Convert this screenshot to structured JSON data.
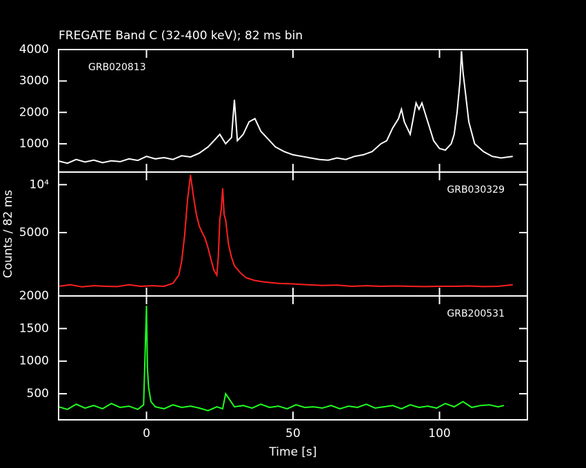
{
  "chart_data": [
    {
      "type": "line",
      "title": "FREGATE Band C (32-400 keV); 82 ms bin",
      "annotation": "GRB020813",
      "xlim": [
        -30,
        130
      ],
      "ylim": [
        100,
        4000
      ],
      "yticks": [
        1000,
        2000,
        3000,
        4000
      ],
      "x": [
        -30,
        -27,
        -24,
        -21,
        -18,
        -15,
        -12,
        -9,
        -6,
        -3,
        0,
        3,
        6,
        9,
        12,
        15,
        18,
        21,
        23,
        25,
        27,
        29,
        30,
        31,
        33,
        35,
        37,
        39,
        41,
        44,
        47,
        50,
        53,
        56,
        59,
        62,
        65,
        68,
        71,
        74,
        77,
        80,
        82,
        84,
        86,
        87,
        88,
        90,
        91,
        92,
        93,
        94,
        96,
        98,
        100,
        102,
        104,
        105,
        106,
        107,
        107.5,
        108,
        109,
        110,
        112,
        115,
        118,
        121,
        125
      ],
      "series": [
        {
          "name": "GRB020813",
          "color": "#ffffff",
          "values": [
            450,
            380,
            500,
            420,
            480,
            400,
            460,
            430,
            520,
            470,
            600,
            520,
            560,
            500,
            620,
            580,
            700,
            900,
            1100,
            1300,
            1000,
            1200,
            2400,
            1100,
            1300,
            1700,
            1800,
            1400,
            1200,
            900,
            750,
            650,
            600,
            550,
            500,
            480,
            550,
            500,
            600,
            650,
            750,
            1000,
            1100,
            1500,
            1800,
            2100,
            1700,
            1300,
            1800,
            2300,
            2100,
            2300,
            1700,
            1100,
            850,
            800,
            1000,
            1300,
            2000,
            3000,
            3950,
            3300,
            2500,
            1700,
            1000,
            750,
            600,
            550,
            600
          ]
        }
      ]
    },
    {
      "type": "line",
      "annotation": "GRB030329",
      "ylabel": "Counts / 82 ms",
      "yscale": "log",
      "xlim": [
        -30,
        130
      ],
      "ylim": [
        2000,
        12000
      ],
      "yticks": [
        {
          "value": 10000,
          "label": "10⁴"
        },
        5000,
        2000
      ],
      "x": [
        -30,
        -26,
        -22,
        -18,
        -14,
        -10,
        -6,
        -2,
        2,
        6,
        9,
        11,
        12,
        13,
        14,
        15,
        16,
        17,
        18,
        19,
        20,
        21,
        22,
        23,
        24,
        24.5,
        25,
        25.5,
        26,
        26.5,
        27,
        28,
        29,
        30,
        32,
        34,
        37,
        40,
        45,
        50,
        55,
        60,
        65,
        70,
        75,
        80,
        85,
        90,
        95,
        100,
        105,
        110,
        115,
        120,
        125
      ],
      "series": [
        {
          "name": "GRB030329",
          "color": "#ff2020",
          "values": [
            2300,
            2350,
            2280,
            2320,
            2300,
            2290,
            2350,
            2300,
            2320,
            2300,
            2400,
            2700,
            3300,
            4800,
            8000,
            11500,
            8500,
            6500,
            5500,
            5000,
            4600,
            4000,
            3400,
            2900,
            2700,
            3500,
            6000,
            7000,
            9500,
            6500,
            6000,
            4200,
            3500,
            3100,
            2800,
            2600,
            2500,
            2450,
            2400,
            2380,
            2350,
            2330,
            2340,
            2300,
            2320,
            2300,
            2310,
            2300,
            2290,
            2300,
            2300,
            2310,
            2290,
            2300,
            2350
          ]
        }
      ]
    },
    {
      "type": "line",
      "annotation": "GRB200531",
      "xlabel": "Time [s]",
      "xlim": [
        -30,
        130
      ],
      "xticks": [
        0,
        50,
        100
      ],
      "ylim": [
        100,
        2000
      ],
      "yticks": [
        500,
        1000,
        1500
      ],
      "x": [
        -30,
        -27,
        -24,
        -21,
        -18,
        -15,
        -12,
        -9,
        -6,
        -3,
        -1,
        0,
        0.3,
        0.7,
        1.5,
        3,
        6,
        9,
        12,
        15,
        18,
        21,
        24,
        26,
        27,
        30,
        33,
        36,
        39,
        42,
        45,
        48,
        51,
        54,
        57,
        60,
        63,
        66,
        69,
        72,
        75,
        78,
        81,
        84,
        87,
        90,
        93,
        96,
        99,
        102,
        105,
        108,
        111,
        114,
        117,
        120,
        122
      ],
      "series": [
        {
          "name": "GRB200531",
          "color": "#20ff20",
          "values": [
            300,
            260,
            340,
            280,
            320,
            270,
            350,
            290,
            310,
            260,
            330,
            1850,
            900,
            600,
            380,
            300,
            270,
            330,
            290,
            310,
            280,
            240,
            300,
            270,
            500,
            300,
            320,
            280,
            340,
            290,
            310,
            270,
            330,
            290,
            300,
            280,
            320,
            270,
            310,
            290,
            340,
            280,
            300,
            320,
            270,
            330,
            290,
            310,
            280,
            350,
            300,
            380,
            290,
            320,
            330,
            300,
            320
          ]
        }
      ]
    }
  ]
}
